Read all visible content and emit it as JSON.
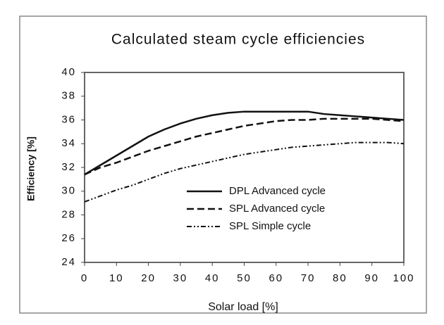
{
  "chart_data": {
    "type": "line",
    "title": "Calculated steam cycle efficiencies",
    "x_label": "Solar load [%]",
    "y_label": "Efficiency [%]",
    "x": [
      0,
      5,
      10,
      15,
      20,
      25,
      30,
      35,
      40,
      45,
      50,
      55,
      60,
      65,
      70,
      75,
      80,
      85,
      90,
      95,
      100
    ],
    "series": [
      {
        "name": "DPL Advanced cycle",
        "color": "#111111",
        "dash": "solid",
        "values": [
          31.4,
          32.2,
          33.0,
          33.8,
          34.6,
          35.2,
          35.7,
          36.1,
          36.4,
          36.6,
          36.7,
          36.7,
          36.7,
          36.7,
          36.7,
          36.5,
          36.4,
          36.3,
          36.2,
          36.1,
          36.0
        ]
      },
      {
        "name": "SPL Advanced cycle",
        "color": "#111111",
        "dash": "dashed",
        "values": [
          31.4,
          32.0,
          32.4,
          32.9,
          33.4,
          33.8,
          34.2,
          34.6,
          34.9,
          35.2,
          35.5,
          35.7,
          35.9,
          36.0,
          36.0,
          36.1,
          36.1,
          36.1,
          36.1,
          36.0,
          35.9
        ]
      },
      {
        "name": "SPL Simple cycle",
        "color": "#111111",
        "dash": "dash-dot-dot",
        "values": [
          29.1,
          29.6,
          30.1,
          30.5,
          31.0,
          31.5,
          31.9,
          32.2,
          32.5,
          32.8,
          33.1,
          33.3,
          33.5,
          33.7,
          33.8,
          33.9,
          34.0,
          34.1,
          34.1,
          34.1,
          34.0
        ]
      }
    ],
    "xlim": [
      0,
      100
    ],
    "xticks": [
      0,
      10,
      20,
      30,
      40,
      50,
      60,
      70,
      80,
      90,
      100
    ],
    "ylim": [
      24,
      40
    ],
    "yticks": [
      24,
      26,
      28,
      30,
      32,
      34,
      36,
      38,
      40
    ],
    "grid": false
  }
}
